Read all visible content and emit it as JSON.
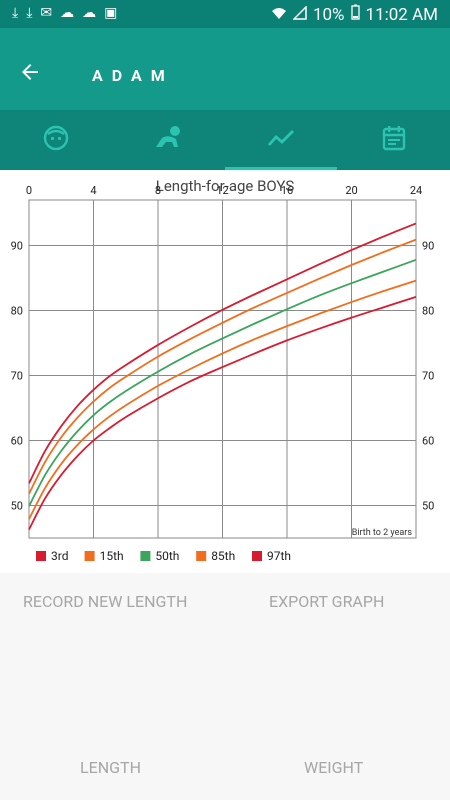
{
  "status_bar": {
    "battery": "10%",
    "time": "11:02 AM"
  },
  "header": {
    "title": "ADAM"
  },
  "tabs": [
    {
      "icon": "baby-face-icon"
    },
    {
      "icon": "crawling-baby-icon"
    },
    {
      "icon": "chart-trend-icon",
      "active": true
    },
    {
      "icon": "calendar-icon"
    }
  ],
  "chart": {
    "title": "Length-for-age BOYS",
    "note": "Birth to 2 years"
  },
  "chart_data": {
    "type": "line",
    "title": "Length-for-age BOYS",
    "xlabel": "",
    "ylabel": "",
    "xlim": [
      0,
      24
    ],
    "ylim": [
      45,
      97
    ],
    "x_ticks": [
      0,
      4,
      8,
      12,
      16,
      20,
      24
    ],
    "y_ticks": [
      50,
      60,
      70,
      80,
      90
    ],
    "grid": true,
    "legend_position": "bottom-left",
    "x": [
      0,
      1,
      2,
      3,
      4,
      5,
      6,
      8,
      10,
      12,
      14,
      16,
      18,
      20,
      22,
      24
    ],
    "series": [
      {
        "name": "3rd",
        "color": "#d81b2f",
        "values": [
          46.3,
          51.1,
          54.7,
          57.6,
          60.0,
          61.9,
          63.6,
          66.5,
          69.1,
          71.3,
          73.4,
          75.4,
          77.2,
          78.9,
          80.5,
          82.1
        ]
      },
      {
        "name": "15th",
        "color": "#f06e1e",
        "values": [
          47.9,
          52.7,
          56.4,
          59.3,
          61.7,
          63.7,
          65.4,
          68.4,
          71.0,
          73.4,
          75.6,
          77.6,
          79.5,
          81.3,
          83.0,
          84.6
        ]
      },
      {
        "name": "50th",
        "color": "#3aa55b",
        "values": [
          49.9,
          54.7,
          58.4,
          61.4,
          63.9,
          65.9,
          67.6,
          70.6,
          73.3,
          75.7,
          78.0,
          80.2,
          82.3,
          84.2,
          86.0,
          87.8
        ]
      },
      {
        "name": "85th",
        "color": "#f06e1e",
        "values": [
          51.8,
          56.7,
          60.5,
          63.5,
          66.0,
          68.1,
          69.8,
          72.9,
          75.6,
          78.1,
          80.5,
          82.7,
          84.9,
          87.0,
          89.0,
          90.9
        ]
      },
      {
        "name": "97th",
        "color": "#d81b2f",
        "values": [
          53.4,
          58.4,
          62.2,
          65.3,
          67.8,
          69.9,
          71.6,
          74.7,
          77.5,
          80.1,
          82.5,
          84.8,
          87.1,
          89.3,
          91.4,
          93.4
        ]
      }
    ]
  },
  "actions": {
    "record": "RECORD NEW LENGTH",
    "export": "EXPORT GRAPH"
  },
  "bottom_tabs": {
    "length": "LENGTH",
    "weight": "WEIGHT"
  }
}
